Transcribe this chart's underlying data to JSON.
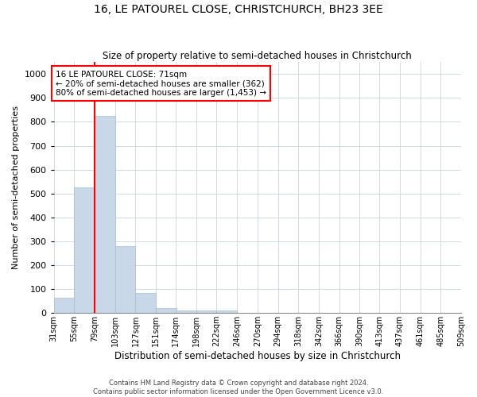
{
  "title": "16, LE PATOUREL CLOSE, CHRISTCHURCH, BH23 3EE",
  "subtitle": "Size of property relative to semi-detached houses in Christchurch",
  "xlabel": "Distribution of semi-detached houses by size in Christchurch",
  "ylabel": "Number of semi-detached properties",
  "bar_color": "#c8d8e8",
  "bar_edge_color": "#a8bcd0",
  "property_line_x": 79,
  "property_line_color": "red",
  "annotation_title": "16 LE PATOUREL CLOSE: 71sqm",
  "annotation_line1": "← 20% of semi-detached houses are smaller (362)",
  "annotation_line2": "80% of semi-detached houses are larger (1,453) →",
  "annotation_box_color": "red",
  "footer_line1": "Contains HM Land Registry data © Crown copyright and database right 2024.",
  "footer_line2": "Contains public sector information licensed under the Open Government Licence v3.0.",
  "bin_edges": [
    31,
    55,
    79,
    103,
    127,
    151,
    174,
    198,
    222,
    246,
    270,
    294,
    318,
    342,
    366,
    390,
    413,
    437,
    461,
    485,
    509
  ],
  "bin_labels": [
    "31sqm",
    "55sqm",
    "79sqm",
    "103sqm",
    "127sqm",
    "151sqm",
    "174sqm",
    "198sqm",
    "222sqm",
    "246sqm",
    "270sqm",
    "294sqm",
    "318sqm",
    "342sqm",
    "366sqm",
    "390sqm",
    "413sqm",
    "437sqm",
    "461sqm",
    "485sqm",
    "509sqm"
  ],
  "bar_heights": [
    65,
    525,
    825,
    280,
    83,
    20,
    12,
    12,
    10,
    0,
    0,
    0,
    0,
    0,
    0,
    0,
    0,
    0,
    0,
    0
  ],
  "ylim": [
    0,
    1050
  ],
  "yticks": [
    0,
    100,
    200,
    300,
    400,
    500,
    600,
    700,
    800,
    900,
    1000
  ],
  "background_color": "#ffffff",
  "grid_color": "#c8d4e0"
}
